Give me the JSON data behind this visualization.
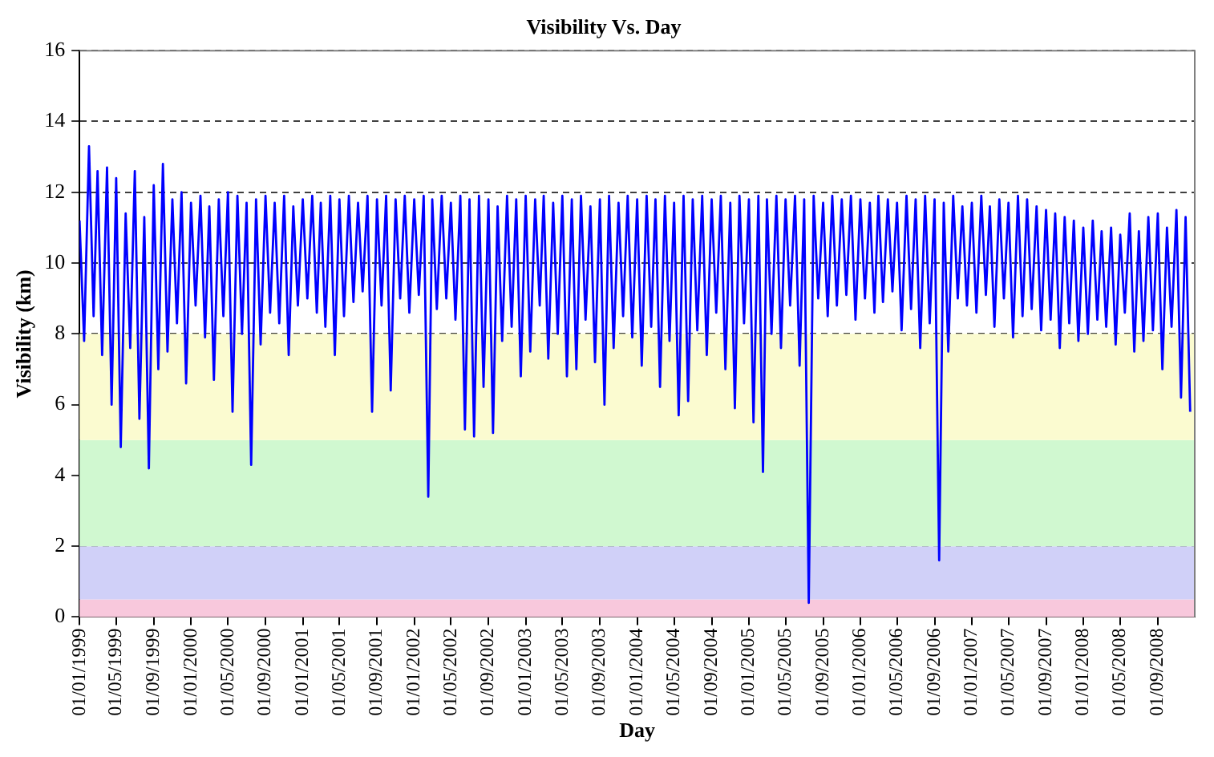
{
  "chart_data": {
    "type": "line",
    "title": "Visibility Vs. Day",
    "xlabel": "Day",
    "ylabel": "Visibility (km)",
    "xlim": [
      "1999-01-01",
      "2008-12-31"
    ],
    "xticks": [
      {
        "value": "1999-01-01",
        "label": "01/01/1999"
      },
      {
        "value": "1999-05-01",
        "label": "01/05/1999"
      },
      {
        "value": "1999-09-01",
        "label": "01/09/1999"
      },
      {
        "value": "2000-01-01",
        "label": "01/01/2000"
      },
      {
        "value": "2000-05-01",
        "label": "01/05/2000"
      },
      {
        "value": "2000-09-01",
        "label": "01/09/2000"
      },
      {
        "value": "2001-01-01",
        "label": "01/01/2001"
      },
      {
        "value": "2001-05-01",
        "label": "01/05/2001"
      },
      {
        "value": "2001-09-01",
        "label": "01/09/2001"
      },
      {
        "value": "2002-01-01",
        "label": "01/01/2002"
      },
      {
        "value": "2002-05-01",
        "label": "01/05/2002"
      },
      {
        "value": "2002-09-01",
        "label": "01/09/2002"
      },
      {
        "value": "2003-01-01",
        "label": "01/01/2003"
      },
      {
        "value": "2003-05-01",
        "label": "01/05/2003"
      },
      {
        "value": "2003-09-01",
        "label": "01/09/2003"
      },
      {
        "value": "2004-01-01",
        "label": "01/01/2004"
      },
      {
        "value": "2004-05-01",
        "label": "01/05/2004"
      },
      {
        "value": "2004-09-01",
        "label": "01/09/2004"
      },
      {
        "value": "2005-01-01",
        "label": "01/01/2005"
      },
      {
        "value": "2005-05-01",
        "label": "01/05/2005"
      },
      {
        "value": "2005-09-01",
        "label": "01/09/2005"
      },
      {
        "value": "2006-01-01",
        "label": "01/01/2006"
      },
      {
        "value": "2006-05-01",
        "label": "01/05/2006"
      },
      {
        "value": "2006-09-01",
        "label": "01/09/2006"
      },
      {
        "value": "2007-01-01",
        "label": "01/01/2007"
      },
      {
        "value": "2007-05-01",
        "label": "01/05/2007"
      },
      {
        "value": "2007-09-01",
        "label": "01/09/2007"
      },
      {
        "value": "2008-01-01",
        "label": "01/01/2008"
      },
      {
        "value": "2008-05-01",
        "label": "01/05/2008"
      },
      {
        "value": "2008-09-01",
        "label": "01/09/2008"
      }
    ],
    "ylim": [
      0,
      16
    ],
    "yticks": [
      0,
      2,
      4,
      6,
      8,
      10,
      12,
      14,
      16
    ],
    "grid": "y",
    "marker": "none",
    "line_style": "solid",
    "bands": [
      {
        "axis": "y",
        "from": 0,
        "to": 0.5,
        "color": "#f8c8dc"
      },
      {
        "axis": "y",
        "from": 0.5,
        "to": 2,
        "color": "#d0d0f8"
      },
      {
        "axis": "y",
        "from": 2,
        "to": 5,
        "color": "#d0f8d0"
      },
      {
        "axis": "y",
        "from": 5,
        "to": 8,
        "color": "#fbfbd0"
      }
    ],
    "x": [
      "1999-01-01",
      "1999-01-16",
      "1999-02-01",
      "1999-02-16",
      "1999-03-01",
      "1999-03-16",
      "1999-04-01",
      "1999-04-16",
      "1999-05-01",
      "1999-05-16",
      "1999-06-01",
      "1999-06-16",
      "1999-07-01",
      "1999-07-16",
      "1999-08-01",
      "1999-08-16",
      "1999-09-01",
      "1999-09-16",
      "1999-10-01",
      "1999-10-16",
      "1999-11-01",
      "1999-11-16",
      "1999-12-01",
      "1999-12-16",
      "2000-01-01",
      "2000-01-16",
      "2000-02-01",
      "2000-02-16",
      "2000-03-01",
      "2000-03-16",
      "2000-04-01",
      "2000-04-16",
      "2000-05-01",
      "2000-05-16",
      "2000-06-01",
      "2000-06-16",
      "2000-07-01",
      "2000-07-16",
      "2000-08-01",
      "2000-08-16",
      "2000-09-01",
      "2000-09-16",
      "2000-10-01",
      "2000-10-16",
      "2000-11-01",
      "2000-11-16",
      "2000-12-01",
      "2000-12-16",
      "2001-01-01",
      "2001-01-16",
      "2001-02-01",
      "2001-02-16",
      "2001-03-01",
      "2001-03-16",
      "2001-04-01",
      "2001-04-16",
      "2001-05-01",
      "2001-05-16",
      "2001-06-01",
      "2001-06-16",
      "2001-07-01",
      "2001-07-16",
      "2001-08-01",
      "2001-08-16",
      "2001-09-01",
      "2001-09-16",
      "2001-10-01",
      "2001-10-16",
      "2001-11-01",
      "2001-11-16",
      "2001-12-01",
      "2001-12-16",
      "2002-01-01",
      "2002-01-16",
      "2002-02-01",
      "2002-02-16",
      "2002-03-01",
      "2002-03-16",
      "2002-04-01",
      "2002-04-16",
      "2002-05-01",
      "2002-05-16",
      "2002-06-01",
      "2002-06-16",
      "2002-07-01",
      "2002-07-16",
      "2002-08-01",
      "2002-08-16",
      "2002-09-01",
      "2002-09-16",
      "2002-10-01",
      "2002-10-16",
      "2002-11-01",
      "2002-11-16",
      "2002-12-01",
      "2002-12-16",
      "2003-01-01",
      "2003-01-16",
      "2003-02-01",
      "2003-02-16",
      "2003-03-01",
      "2003-03-16",
      "2003-04-01",
      "2003-04-16",
      "2003-05-01",
      "2003-05-16",
      "2003-06-01",
      "2003-06-16",
      "2003-07-01",
      "2003-07-16",
      "2003-08-01",
      "2003-08-16",
      "2003-09-01",
      "2003-09-16",
      "2003-10-01",
      "2003-10-16",
      "2003-11-01",
      "2003-11-16",
      "2003-12-01",
      "2003-12-16",
      "2004-01-01",
      "2004-01-16",
      "2004-02-01",
      "2004-02-16",
      "2004-03-01",
      "2004-03-16",
      "2004-04-01",
      "2004-04-16",
      "2004-05-01",
      "2004-05-16",
      "2004-06-01",
      "2004-06-16",
      "2004-07-01",
      "2004-07-16",
      "2004-08-01",
      "2004-08-16",
      "2004-09-01",
      "2004-09-16",
      "2004-10-01",
      "2004-10-16",
      "2004-11-01",
      "2004-11-16",
      "2004-12-01",
      "2004-12-16",
      "2005-01-01",
      "2005-01-16",
      "2005-02-01",
      "2005-02-16",
      "2005-03-01",
      "2005-03-16",
      "2005-04-01",
      "2005-04-16",
      "2005-05-01",
      "2005-05-16",
      "2005-06-01",
      "2005-06-16",
      "2005-07-01",
      "2005-07-16",
      "2005-08-01",
      "2005-08-16",
      "2005-09-01",
      "2005-09-16",
      "2005-10-01",
      "2005-10-16",
      "2005-11-01",
      "2005-11-16",
      "2005-12-01",
      "2005-12-16",
      "2006-01-01",
      "2006-01-16",
      "2006-02-01",
      "2006-02-16",
      "2006-03-01",
      "2006-03-16",
      "2006-04-01",
      "2006-04-16",
      "2006-05-01",
      "2006-05-16",
      "2006-06-01",
      "2006-06-16",
      "2006-07-01",
      "2006-07-16",
      "2006-08-01",
      "2006-08-16",
      "2006-09-01",
      "2006-09-16",
      "2006-10-01",
      "2006-10-16",
      "2006-11-01",
      "2006-11-16",
      "2006-12-01",
      "2006-12-16",
      "2007-01-01",
      "2007-01-16",
      "2007-02-01",
      "2007-02-16",
      "2007-03-01",
      "2007-03-16",
      "2007-04-01",
      "2007-04-16",
      "2007-05-01",
      "2007-05-16",
      "2007-06-01",
      "2007-06-16",
      "2007-07-01",
      "2007-07-16",
      "2007-08-01",
      "2007-08-16",
      "2007-09-01",
      "2007-09-16",
      "2007-10-01",
      "2007-10-16",
      "2007-11-01",
      "2007-11-16",
      "2007-12-01",
      "2007-12-16",
      "2008-01-01",
      "2008-01-16",
      "2008-02-01",
      "2008-02-16",
      "2008-03-01",
      "2008-03-16",
      "2008-04-01",
      "2008-04-16",
      "2008-05-01",
      "2008-05-16",
      "2008-06-01",
      "2008-06-16",
      "2008-07-01",
      "2008-07-16",
      "2008-08-01",
      "2008-08-16",
      "2008-09-01",
      "2008-09-16",
      "2008-10-01",
      "2008-10-16",
      "2008-11-01",
      "2008-11-16",
      "2008-12-01",
      "2008-12-16"
    ],
    "series": [
      {
        "color": "#0000ff",
        "values": [
          11.2,
          7.8,
          13.3,
          8.5,
          12.6,
          7.4,
          12.7,
          6.0,
          12.4,
          4.8,
          11.4,
          7.6,
          12.6,
          5.6,
          11.3,
          4.2,
          12.2,
          7.0,
          12.8,
          7.5,
          11.8,
          8.3,
          12.0,
          6.6,
          11.7,
          8.8,
          11.9,
          7.9,
          11.6,
          6.7,
          11.8,
          8.5,
          12.0,
          5.8,
          11.9,
          8.0,
          11.7,
          4.3,
          11.8,
          7.7,
          11.9,
          8.6,
          11.7,
          8.3,
          11.9,
          7.4,
          11.6,
          8.8,
          11.8,
          9.0,
          11.9,
          8.6,
          11.7,
          8.2,
          11.9,
          7.4,
          11.8,
          8.5,
          11.9,
          8.9,
          11.7,
          9.2,
          11.9,
          5.8,
          11.8,
          8.8,
          11.9,
          6.4,
          11.8,
          9.0,
          11.9,
          8.6,
          11.8,
          9.1,
          11.9,
          3.4,
          11.8,
          8.7,
          11.9,
          9.0,
          11.7,
          8.4,
          11.9,
          5.3,
          11.8,
          5.1,
          11.9,
          6.5,
          11.8,
          5.2,
          11.6,
          7.8,
          11.9,
          8.2,
          11.8,
          6.8,
          11.9,
          7.5,
          11.8,
          8.8,
          11.9,
          7.3,
          11.7,
          8.0,
          11.9,
          6.8,
          11.8,
          7.0,
          11.9,
          8.4,
          11.6,
          7.2,
          11.8,
          6.0,
          11.9,
          7.6,
          11.7,
          8.5,
          11.9,
          7.9,
          11.8,
          7.1,
          11.9,
          8.2,
          11.8,
          6.5,
          11.9,
          7.8,
          11.7,
          5.7,
          11.9,
          6.1,
          11.8,
          8.1,
          11.9,
          7.4,
          11.8,
          8.6,
          11.9,
          7.0,
          11.7,
          5.9,
          11.9,
          8.3,
          11.8,
          5.5,
          11.9,
          4.1,
          11.8,
          8.0,
          11.9,
          7.6,
          11.8,
          8.8,
          11.9,
          7.1,
          11.8,
          0.4,
          11.9,
          9.0,
          11.7,
          8.5,
          11.9,
          8.8,
          11.8,
          9.1,
          11.9,
          8.4,
          11.8,
          9.0,
          11.7,
          8.6,
          11.9,
          8.9,
          11.8,
          9.2,
          11.7,
          8.1,
          11.9,
          8.7,
          11.8,
          7.6,
          11.9,
          8.3,
          11.8,
          1.6,
          11.7,
          7.5,
          11.9,
          9.0,
          11.6,
          8.8,
          11.7,
          8.6,
          11.9,
          9.1,
          11.6,
          8.2,
          11.8,
          9.0,
          11.7,
          7.9,
          11.9,
          8.5,
          11.8,
          8.7,
          11.6,
          8.1,
          11.5,
          8.4,
          11.4,
          7.6,
          11.3,
          8.3,
          11.2,
          7.8,
          11.0,
          8.0,
          11.2,
          8.4,
          10.9,
          8.2,
          11.0,
          7.7,
          10.8,
          8.6,
          11.4,
          7.5,
          10.9,
          7.8,
          11.3,
          8.1,
          11.4,
          7.0,
          11.0,
          8.2,
          11.5,
          6.2,
          11.3,
          5.8
        ]
      }
    ]
  }
}
